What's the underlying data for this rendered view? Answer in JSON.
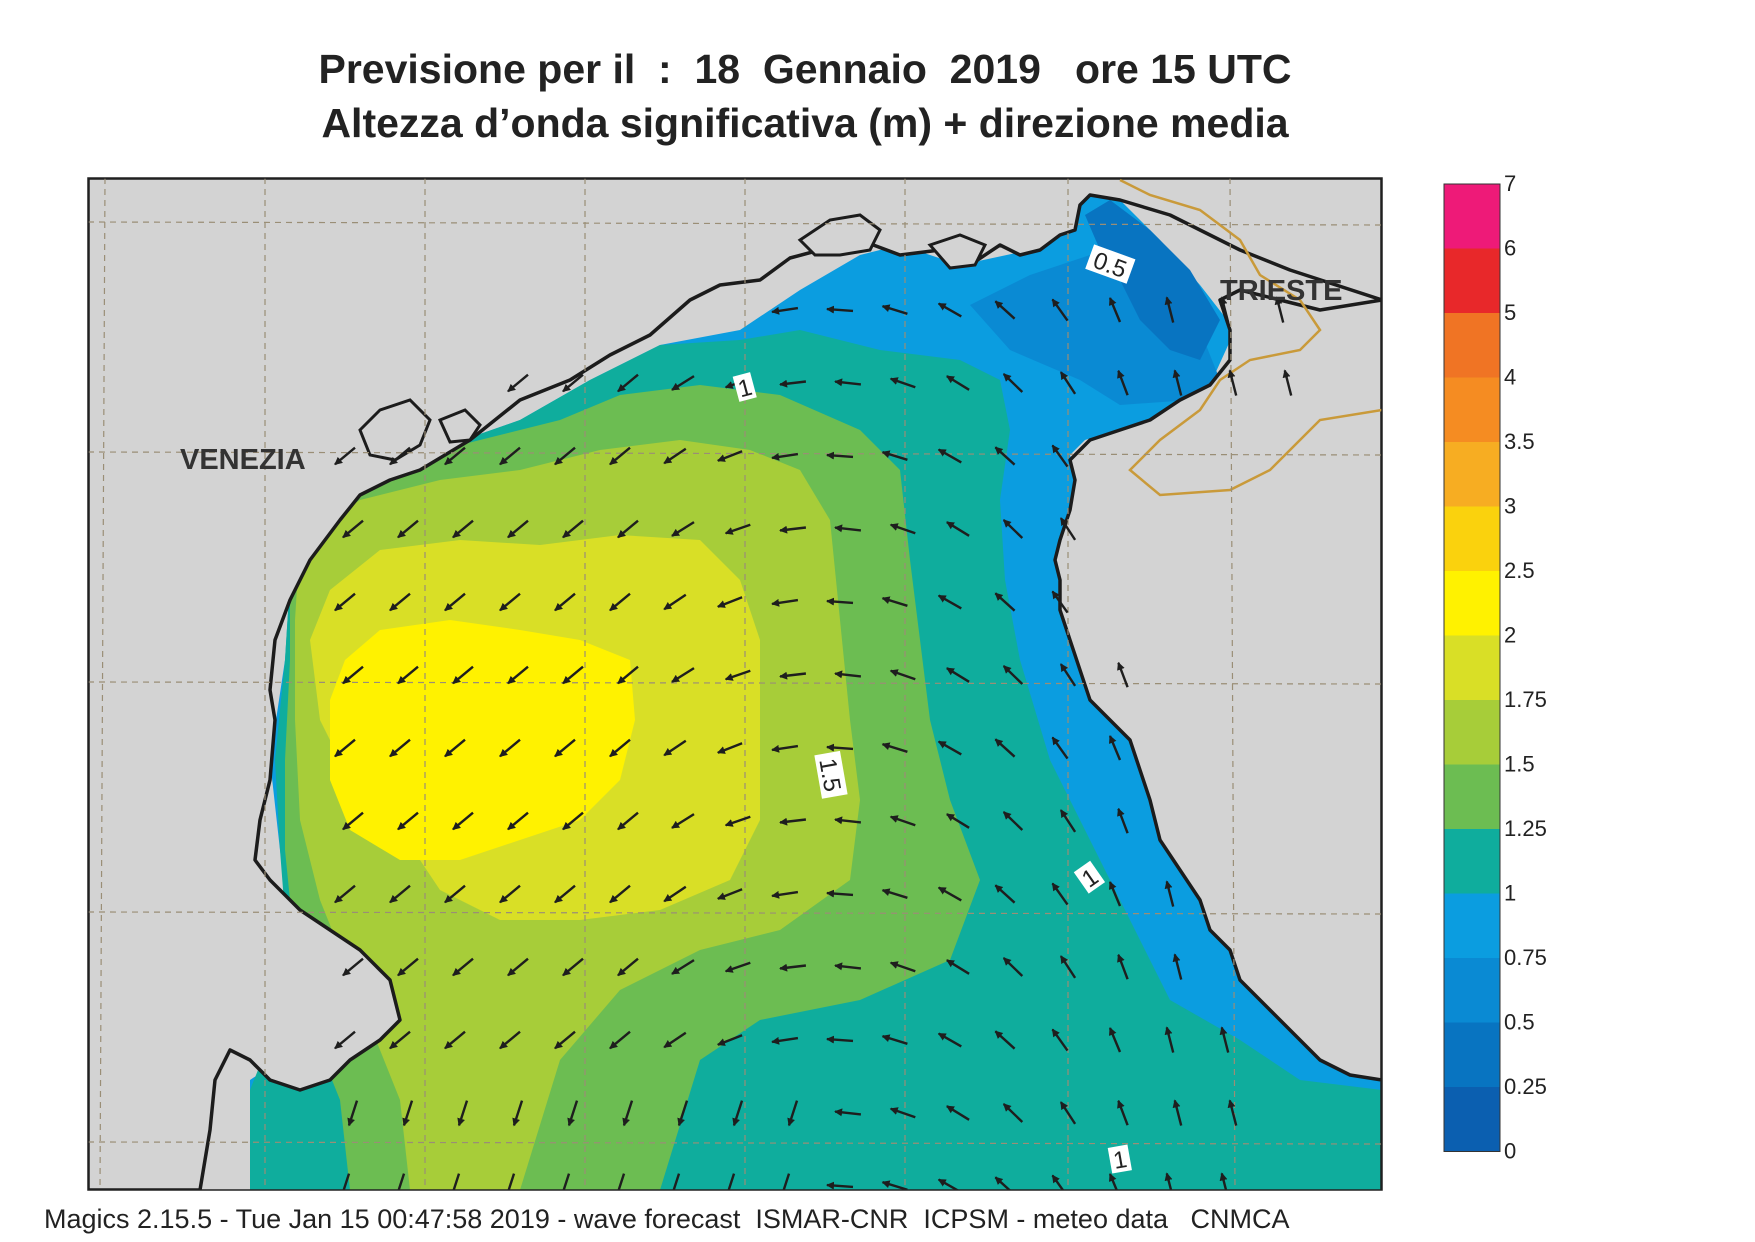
{
  "title": {
    "line1": "Previsione per il  :  18  Gennaio  2019   ore 15 UTC",
    "line2": "Altezza d’onda significativa (m) + direzione media"
  },
  "footer": "Magics 2.15.5 - Tue Jan 15 00:47:58 2019 - wave forecast  ISMAR-CNR  ICPSM - meteo data   CNMCA",
  "places": {
    "venezia": "VENEZIA",
    "trieste": "TRIESTE"
  },
  "contour_labels": [
    "0.5",
    "1",
    "1.5",
    "1",
    "1"
  ],
  "legend": {
    "ticks": [
      "7",
      "6",
      "5",
      "4",
      "3.5",
      "3",
      "2.5",
      "2",
      "1.75",
      "1.5",
      "1.25",
      "1",
      "0.75",
      "0.5",
      "0.25",
      "0"
    ],
    "colors_top_to_bottom": [
      "#ee1a78",
      "#e8282a",
      "#f07424",
      "#f58c22",
      "#f7ad22",
      "#fad20d",
      "#fff200",
      "#d9df26",
      "#a7cd39",
      "#6cbd52",
      "#0fad9d",
      "#0b9de0",
      "#0a8ad3",
      "#0874c1",
      "#0b5fb0"
    ]
  },
  "colors": {
    "land": "#d3d3d3",
    "coast": "#1c1c1c",
    "grid": "#9a8e76",
    "border": "#c99a3a",
    "arrow": "#1e1e1e"
  }
}
